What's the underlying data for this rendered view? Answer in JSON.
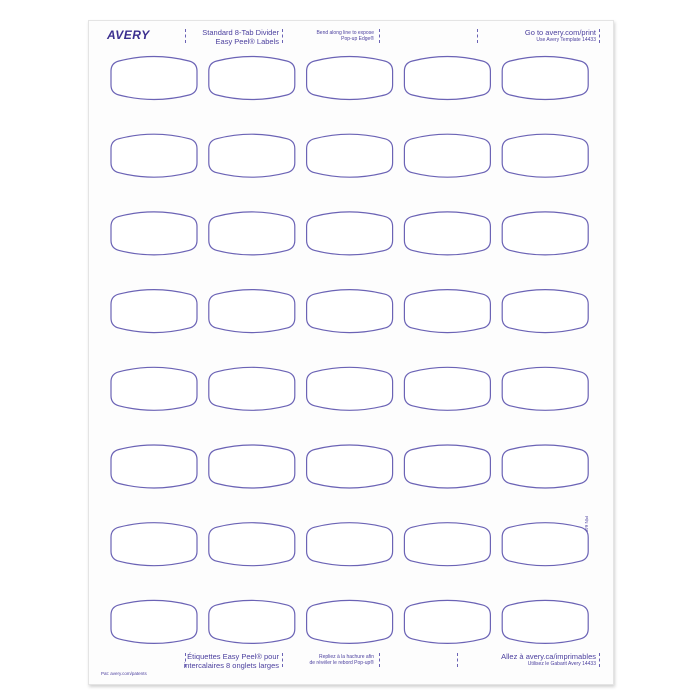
{
  "brand": "AVERY",
  "header": {
    "product_line1": "Standard 8-Tab Divider",
    "product_line2": "Easy Peel® Labels",
    "bend_line1": "Bend along line to expose",
    "bend_line2": "Pop-up Edge®",
    "url": "Go to avery.com/print",
    "template": "Use Avery Template 14433"
  },
  "footer": {
    "product_fr_line1": "Étiquettes Easy Peel® pour",
    "product_fr_line2": "intercalaires 8 onglets larges",
    "bend_fr_line1": "Repliez à la hachure afin",
    "bend_fr_line2": "de révéler le rebord Pop-up®",
    "url_fr": "Allez à avery.ca/imprimables",
    "template_fr": "Utilisez le Gabarit Avery 14433",
    "patents": "Pat: avery.com/patents"
  },
  "part_number": "P/N 6407181",
  "grid": {
    "rows": 8,
    "columns": 5
  },
  "colors": {
    "label_outline": "#6b63b5",
    "text": "#4b3f9e",
    "sheet": "#fdfdfd"
  }
}
